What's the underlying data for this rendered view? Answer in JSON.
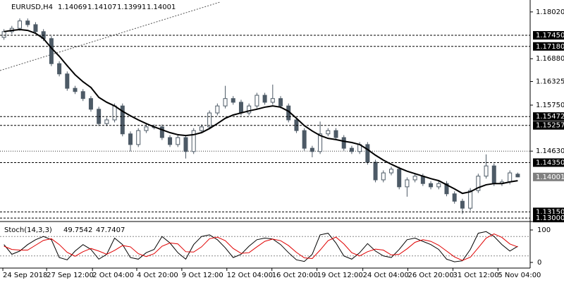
{
  "chart_data": {
    "type": "candlestick",
    "symbol": "EURUSD,H4",
    "color": "#4d5a66",
    "xlim": [
      0,
      66
    ],
    "xticks": [
      {
        "value": 0.36,
        "label": "24 Sep 2018"
      },
      {
        "value": 5.9,
        "label": "27 Sep 12:00"
      },
      {
        "value": 11.7,
        "label": "2 Oct 04:00"
      },
      {
        "value": 17.3,
        "label": "4 Oct 20:00"
      },
      {
        "value": 23.0,
        "label": "9 Oct 12:00"
      },
      {
        "value": 28.7,
        "label": "12 Oct 04:00"
      },
      {
        "value": 34.4,
        "label": "16 Oct 20:00"
      },
      {
        "value": 40.1,
        "label": "19 Oct 12:00"
      },
      {
        "value": 45.9,
        "label": "24 Oct 04:00"
      },
      {
        "value": 51.6,
        "label": "26 Oct 20:00"
      },
      {
        "value": 57.3,
        "label": "31 Oct 12:00"
      },
      {
        "value": 63.0,
        "label": "5 Nov 04:00"
      }
    ],
    "ylim": [
      1.1295,
      1.1831
    ],
    "yticks": [
      {
        "value": 1.1802,
        "label": "1.18020"
      },
      {
        "value": 1.1688,
        "label": "1.16880"
      },
      {
        "value": 1.16325,
        "label": "1.16325"
      },
      {
        "value": 1.1575,
        "label": "1.15750"
      },
      {
        "value": 1.1463,
        "label": "1.14630"
      }
    ],
    "dotted_level": 1.1463,
    "levels": [
      {
        "value": 1.1745,
        "label": "1.17450"
      },
      {
        "value": 1.1718,
        "label": "1.17180"
      },
      {
        "value": 1.15472,
        "label": "1.15472"
      },
      {
        "value": 1.15257,
        "label": "1.15257"
      },
      {
        "value": 1.1435,
        "label": "1.14350"
      },
      {
        "value": 1.1315,
        "label": "1.13150"
      },
      {
        "value": 1.13,
        "label": "1.13000"
      }
    ],
    "open": [
      1.174,
      1.1754,
      1.1762,
      1.178,
      1.1771,
      1.1754,
      1.1737,
      1.1676,
      1.1651,
      1.1616,
      1.1608,
      1.1591,
      1.1565,
      1.153,
      1.1539,
      1.1573,
      1.1505,
      1.1479,
      1.1513,
      1.1522,
      1.1522,
      1.1496,
      1.1479,
      1.1496,
      1.1462,
      1.1513,
      1.1522,
      1.1556,
      1.1573,
      1.1591,
      1.1582,
      1.1556,
      1.1573,
      1.1599,
      1.1582,
      1.1591,
      1.1573,
      1.1539,
      1.1513,
      1.147,
      1.1462,
      1.1505,
      1.1513,
      1.1496,
      1.147,
      1.1462,
      1.1479,
      1.1436,
      1.1393,
      1.141,
      1.1419,
      1.1376,
      1.1393,
      1.1402,
      1.1384,
      1.1376,
      1.1384,
      1.1359,
      1.1341,
      1.1324,
      1.1367,
      1.1402,
      1.1427,
      1.1384,
      1.1388,
      1.14069
    ],
    "high": [
      1.176,
      1.1768,
      1.1786,
      1.1786,
      1.1777,
      1.176,
      1.1743,
      1.1682,
      1.1657,
      1.1622,
      1.1614,
      1.1597,
      1.1571,
      1.1545,
      1.1579,
      1.1579,
      1.1511,
      1.1519,
      1.1528,
      1.1528,
      1.1528,
      1.1502,
      1.1502,
      1.1502,
      1.1519,
      1.1528,
      1.1562,
      1.1579,
      1.1622,
      1.1597,
      1.1588,
      1.1579,
      1.1605,
      1.1605,
      1.1625,
      1.1597,
      1.1579,
      1.1545,
      1.1519,
      1.1476,
      1.1535,
      1.1519,
      1.1519,
      1.1502,
      1.1476,
      1.1485,
      1.1485,
      1.1442,
      1.1416,
      1.1425,
      1.1425,
      1.1399,
      1.1408,
      1.1408,
      1.139,
      1.139,
      1.139,
      1.1365,
      1.1347,
      1.1373,
      1.1408,
      1.1455,
      1.1433,
      1.1394,
      1.1416,
      1.14107
    ],
    "low": [
      1.1734,
      1.1748,
      1.1756,
      1.1765,
      1.1748,
      1.1731,
      1.167,
      1.1645,
      1.161,
      1.1602,
      1.1585,
      1.1559,
      1.1524,
      1.1524,
      1.1533,
      1.1499,
      1.1462,
      1.1473,
      1.1507,
      1.1516,
      1.149,
      1.1473,
      1.1473,
      1.1445,
      1.1456,
      1.1507,
      1.1516,
      1.155,
      1.1567,
      1.1576,
      1.155,
      1.155,
      1.1567,
      1.1576,
      1.1576,
      1.1567,
      1.1533,
      1.1507,
      1.1464,
      1.1448,
      1.1456,
      1.1499,
      1.149,
      1.1464,
      1.1456,
      1.1456,
      1.143,
      1.1387,
      1.1387,
      1.1404,
      1.137,
      1.1352,
      1.1387,
      1.1378,
      1.137,
      1.137,
      1.1353,
      1.1335,
      1.131,
      1.1318,
      1.1361,
      1.1396,
      1.1378,
      1.1378,
      1.1382,
      1.13991
    ],
    "close": [
      1.1754,
      1.1762,
      1.178,
      1.1771,
      1.1754,
      1.1737,
      1.1676,
      1.1651,
      1.1616,
      1.1608,
      1.1591,
      1.1565,
      1.153,
      1.1539,
      1.1573,
      1.1505,
      1.1479,
      1.1513,
      1.1522,
      1.1522,
      1.1496,
      1.1479,
      1.1496,
      1.1462,
      1.1513,
      1.1522,
      1.1556,
      1.1573,
      1.1591,
      1.1582,
      1.1556,
      1.1573,
      1.1599,
      1.1582,
      1.1591,
      1.1573,
      1.1539,
      1.1513,
      1.147,
      1.1462,
      1.1505,
      1.1513,
      1.1496,
      1.147,
      1.1462,
      1.1479,
      1.1436,
      1.1393,
      1.141,
      1.1419,
      1.1376,
      1.1393,
      1.1402,
      1.1384,
      1.1376,
      1.1384,
      1.1359,
      1.1341,
      1.1324,
      1.1367,
      1.1402,
      1.1427,
      1.1384,
      1.1388,
      1.141,
      1.14001
    ],
    "ma": {
      "color": "#000000",
      "values": [
        1.1754,
        1.1757,
        1.1759,
        1.1757,
        1.175,
        1.1737,
        1.1714,
        1.1694,
        1.1671,
        1.1649,
        1.1632,
        1.1618,
        1.1594,
        1.1582,
        1.1573,
        1.156,
        1.1549,
        1.1539,
        1.153,
        1.1522,
        1.1515,
        1.1508,
        1.1503,
        1.1501,
        1.1503,
        1.1508,
        1.1518,
        1.153,
        1.1543,
        1.1551,
        1.1556,
        1.1561,
        1.1565,
        1.157,
        1.1573,
        1.157,
        1.156,
        1.1543,
        1.1525,
        1.1512,
        1.1501,
        1.1494,
        1.1491,
        1.1487,
        1.1484,
        1.1479,
        1.1467,
        1.1453,
        1.1441,
        1.1431,
        1.1422,
        1.1414,
        1.1408,
        1.1402,
        1.1396,
        1.1391,
        1.1381,
        1.1371,
        1.136,
        1.1364,
        1.1374,
        1.1381,
        1.1384,
        1.1384,
        1.1388,
        1.1391
      ]
    },
    "stoch": {
      "type": "line",
      "name": "Stoch(14,3,3)",
      "ylim": [
        0,
        100
      ],
      "yticks": [
        100,
        0
      ],
      "levels": [
        80,
        20
      ],
      "series": [
        {
          "color": "#000000",
          "values": [
            55,
            25,
            35,
            55,
            70,
            80,
            70,
            15,
            8,
            35,
            55,
            40,
            10,
            25,
            75,
            55,
            15,
            10,
            30,
            40,
            80,
            60,
            30,
            10,
            55,
            80,
            85,
            70,
            45,
            15,
            25,
            50,
            70,
            75,
            72,
            55,
            30,
            8,
            3,
            25,
            85,
            90,
            60,
            20,
            10,
            30,
            58,
            35,
            20,
            15,
            40,
            70,
            75,
            65,
            55,
            40,
            10,
            2,
            5,
            40,
            90,
            95,
            80,
            55,
            35,
            49.7542
          ]
        },
        {
          "color": "#e00000",
          "values": [
            50,
            40,
            38,
            38,
            53,
            68,
            73,
            55,
            31,
            19,
            33,
            43,
            35,
            25,
            37,
            52,
            48,
            27,
            18,
            27,
            50,
            60,
            57,
            33,
            32,
            48,
            73,
            78,
            67,
            43,
            28,
            30,
            48,
            65,
            72,
            67,
            52,
            31,
            14,
            12,
            38,
            67,
            78,
            57,
            30,
            20,
            33,
            41,
            38,
            23,
            25,
            42,
            62,
            70,
            65,
            53,
            35,
            17,
            6,
            16,
            45,
            75,
            88,
            77,
            57,
            47.7407
          ]
        }
      ]
    }
  }
}
